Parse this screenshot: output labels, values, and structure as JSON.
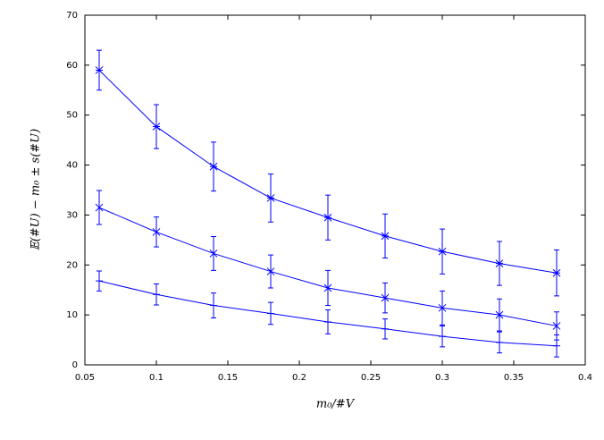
{
  "chart_data": {
    "type": "errorbar-line",
    "x_label": "m₀/#V",
    "y_label": "𝔼(#U) − m₀ ± s(#U)",
    "x": [
      0.06,
      0.1,
      0.14,
      0.18,
      0.22,
      0.26,
      0.3,
      0.34,
      0.38
    ],
    "series": [
      {
        "color": "#0000ff",
        "marker": "asterisk",
        "values": [
          59,
          47.7,
          39.7,
          33.4,
          29.5,
          25.8,
          22.7,
          20.3,
          18.4
        ],
        "errors": [
          4,
          4.4,
          4.9,
          4.8,
          4.5,
          4.4,
          4.5,
          4.4,
          4.6
        ]
      },
      {
        "color": "#0000ff",
        "marker": "x",
        "values": [
          31.5,
          26.6,
          22.3,
          18.7,
          15.4,
          13.4,
          11.4,
          10,
          7.8
        ],
        "errors": [
          3.4,
          3,
          3.4,
          3.3,
          3.5,
          3,
          3.4,
          3.2,
          2.8
        ]
      },
      {
        "color": "#0000ff",
        "marker": "plus",
        "values": [
          16.8,
          14.1,
          11.9,
          10.3,
          8.6,
          7.2,
          5.7,
          4.5,
          3.8
        ],
        "errors": [
          2,
          2.1,
          2.5,
          2.2,
          2.4,
          2,
          2.1,
          2.1,
          2.2
        ]
      }
    ],
    "xlim": [
      0.05,
      0.4
    ],
    "xticks": [
      0.05,
      0.1,
      0.15,
      0.2,
      0.25,
      0.3,
      0.35,
      0.4
    ],
    "ylim": [
      0,
      70
    ],
    "yticks": [
      0,
      10,
      20,
      30,
      40,
      50,
      60,
      70
    ],
    "grid": false
  }
}
